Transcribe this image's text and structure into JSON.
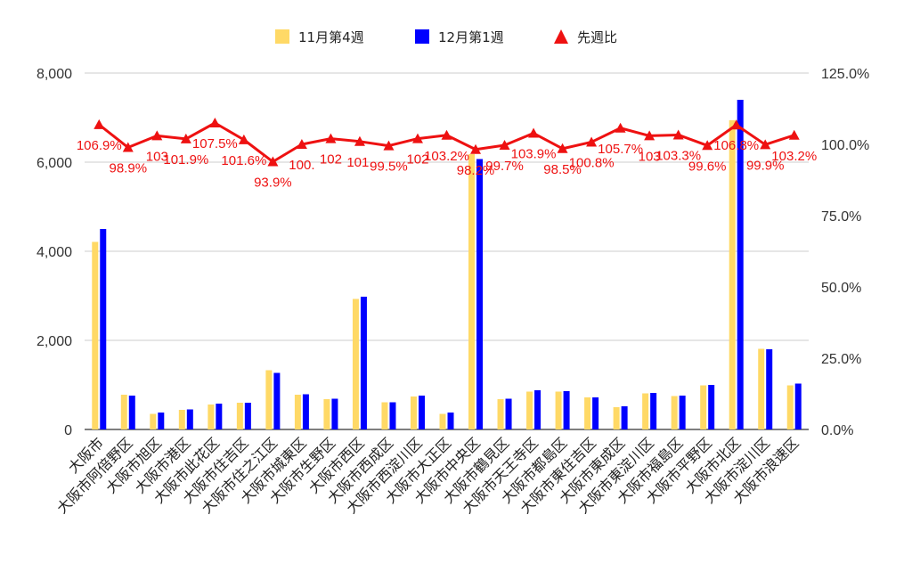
{
  "chart_data": {
    "type": "bar+line",
    "categories": [
      "大阪市",
      "大阪市阿倍野区",
      "大阪市旭区",
      "大阪市港区",
      "大阪市此花区",
      "大阪市住吉区",
      "大阪市住之江区",
      "大阪市城東区",
      "大阪市生野区",
      "大阪市西区",
      "大阪市西成区",
      "大阪市西淀川区",
      "大阪市大正区",
      "大阪市中央区",
      "大阪市鶴見区",
      "大阪市天王寺区",
      "大阪市都島区",
      "大阪市東住吉区",
      "大阪市東成区",
      "大阪市東淀川区",
      "大阪市福島区",
      "大阪市平野区",
      "大阪市北区",
      "大阪市淀川区",
      "大阪市浪速区"
    ],
    "series": [
      {
        "name": "11月第4週",
        "axis": "left",
        "color": "#FFD966",
        "values": [
          4210,
          780,
          350,
          440,
          560,
          600,
          1330,
          780,
          680,
          2930,
          610,
          740,
          350,
          6180,
          680,
          850,
          850,
          720,
          500,
          810,
          750,
          990,
          6940,
          1810,
          990
        ]
      },
      {
        "name": "12月第1週",
        "axis": "left",
        "color": "#0000FF",
        "values": [
          4500,
          760,
          380,
          450,
          580,
          600,
          1270,
          790,
          690,
          2980,
          610,
          760,
          380,
          6070,
          690,
          880,
          860,
          720,
          520,
          820,
          760,
          1000,
          7400,
          1800,
          1030
        ]
      },
      {
        "name": "先週比",
        "axis": "right",
        "color": "#EE1111",
        "marker": "triangle",
        "values": [
          106.9,
          98.9,
          103,
          101.9,
          107.5,
          101.6,
          93.9,
          100,
          102,
          101,
          99.5,
          102,
          103.2,
          98.2,
          99.7,
          103.9,
          98.5,
          100.8,
          105.7,
          103,
          103.3,
          99.6,
          106.8,
          99.9,
          103.2
        ],
        "labels": [
          "106.9%",
          "98.9%",
          "103",
          "101.9%",
          "107.5%",
          "101.6%",
          "93.9%",
          "100.",
          "102",
          "101.",
          "99.5%",
          "102",
          "103.2%",
          "98.2%",
          "99.7%",
          "103.9%",
          "98.5%",
          "100.8%",
          "105.7%",
          "103",
          "103.3%",
          "99.6%",
          "106.8%",
          "99.9%",
          "103.2%"
        ]
      }
    ],
    "y_left": {
      "min": 0,
      "max": 8000,
      "ticks": [
        "0",
        "2,000",
        "4,000",
        "6,000",
        "8,000"
      ]
    },
    "y_right": {
      "min": 0,
      "max": 125,
      "ticks": [
        "0.0%",
        "25.0%",
        "50.0%",
        "75.0%",
        "100.0%",
        "125.0%"
      ]
    },
    "grid": true,
    "legend_position": "top-center"
  }
}
